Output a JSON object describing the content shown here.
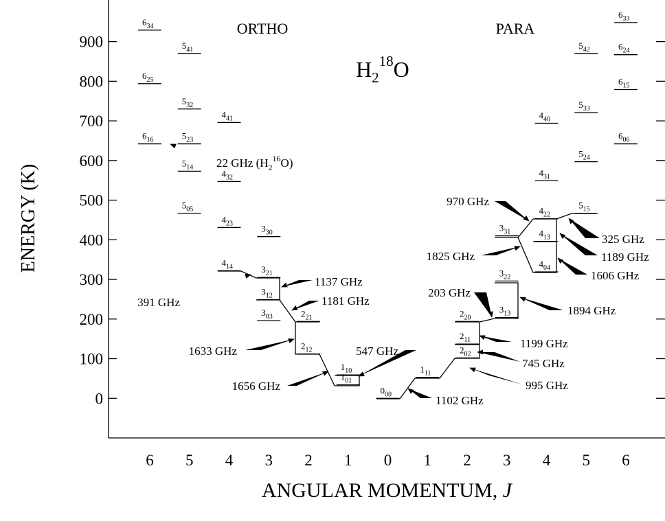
{
  "chart_data": {
    "type": "energy-levels",
    "title": [
      "H",
      "2",
      "18",
      "O"
    ],
    "sections": [
      "ORTHO",
      "PARA"
    ],
    "y_label": "ENERGY (K)",
    "x_label": [
      "ANGULAR MOMENTUM, ",
      "J"
    ],
    "categories": [
      "6",
      "5",
      "4",
      "3",
      "2",
      "1",
      "0",
      "1",
      "2",
      "3",
      "4",
      "5",
      "6"
    ],
    "ylim": [
      -100,
      1005
    ],
    "yticks": [
      0,
      100,
      200,
      300,
      400,
      500,
      600,
      700,
      800,
      900
    ],
    "ortho": [
      {
        "J": "6",
        "sub": "34",
        "energy": 929
      },
      {
        "J": "6",
        "sub": "25",
        "energy": 794
      },
      {
        "J": "6",
        "sub": "16",
        "energy": 642
      },
      {
        "J": "5",
        "sub": "41",
        "energy": 870
      },
      {
        "J": "5",
        "sub": "32",
        "energy": 730
      },
      {
        "J": "5",
        "sub": "23",
        "energy": 642
      },
      {
        "J": "5",
        "sub": "14",
        "energy": 573
      },
      {
        "J": "5",
        "sub": "05",
        "energy": 467
      },
      {
        "J": "4",
        "sub": "41",
        "energy": 696
      },
      {
        "J": "4",
        "sub": "32",
        "energy": 547
      },
      {
        "J": "4",
        "sub": "23",
        "energy": 431
      },
      {
        "J": "4",
        "sub": "14",
        "energy": 322
      },
      {
        "J": "3",
        "sub": "30",
        "energy": 408
      },
      {
        "J": "3",
        "sub": "21",
        "energy": 305
      },
      {
        "J": "3",
        "sub": "12",
        "energy": 249
      },
      {
        "J": "3",
        "sub": "03",
        "energy": 196
      },
      {
        "J": "2",
        "sub": "21",
        "energy": 194
      },
      {
        "J": "2",
        "sub": "12",
        "energy": 112
      },
      {
        "J": "1",
        "sub": "10",
        "energy": 59
      },
      {
        "J": "1",
        "sub": "01",
        "energy": 34
      }
    ],
    "para": [
      {
        "J": "0",
        "sub": "00",
        "energy": 0
      },
      {
        "J": "1",
        "sub": "11",
        "energy": 53
      },
      {
        "J": "2",
        "sub": "02",
        "energy": 102
      },
      {
        "J": "2",
        "sub": "11",
        "energy": 137
      },
      {
        "J": "2",
        "sub": "20",
        "energy": 194
      },
      {
        "J": "3",
        "sub": "13",
        "energy": 204
      },
      {
        "J": "3",
        "sub": "22",
        "energy": 296
      },
      {
        "J": "3",
        "sub": "31",
        "energy": 410
      },
      {
        "J": "4",
        "sub": "04",
        "energy": 319
      },
      {
        "J": "4",
        "sub": "13",
        "energy": 396
      },
      {
        "J": "4",
        "sub": "22",
        "energy": 453
      },
      {
        "J": "4",
        "sub": "31",
        "energy": 549
      },
      {
        "J": "4",
        "sub": "40",
        "energy": 694
      },
      {
        "J": "5",
        "sub": "15",
        "energy": 467
      },
      {
        "J": "5",
        "sub": "24",
        "energy": 597
      },
      {
        "J": "5",
        "sub": "33",
        "energy": 721
      },
      {
        "J": "5",
        "sub": "42",
        "energy": 870
      },
      {
        "J": "6",
        "sub": "06",
        "energy": 642
      },
      {
        "J": "6",
        "sub": "15",
        "energy": 779
      },
      {
        "J": "6",
        "sub": "24",
        "energy": 867
      },
      {
        "J": "6",
        "sub": "33",
        "energy": 948
      }
    ],
    "transitions": [
      {
        "label": "22 GHz (H",
        "sub": "2",
        "sup": "16",
        "end": "O)"
      },
      {
        "label": "391 GHz"
      },
      {
        "label": "1137 GHz"
      },
      {
        "label": "1181 GHz"
      },
      {
        "label": "1633 GHz"
      },
      {
        "label": "1656 GHz"
      },
      {
        "label": "547 GHz"
      },
      {
        "label": "1102 GHz"
      },
      {
        "label": "995 GHz"
      },
      {
        "label": "745 GHz"
      },
      {
        "label": "1199 GHz"
      },
      {
        "label": "203 GHz"
      },
      {
        "label": "1894 GHz"
      },
      {
        "label": "970 GHz"
      },
      {
        "label": "1825 GHz"
      },
      {
        "label": "325 GHz"
      },
      {
        "label": "1189 GHz"
      },
      {
        "label": "1606 GHz"
      }
    ]
  }
}
